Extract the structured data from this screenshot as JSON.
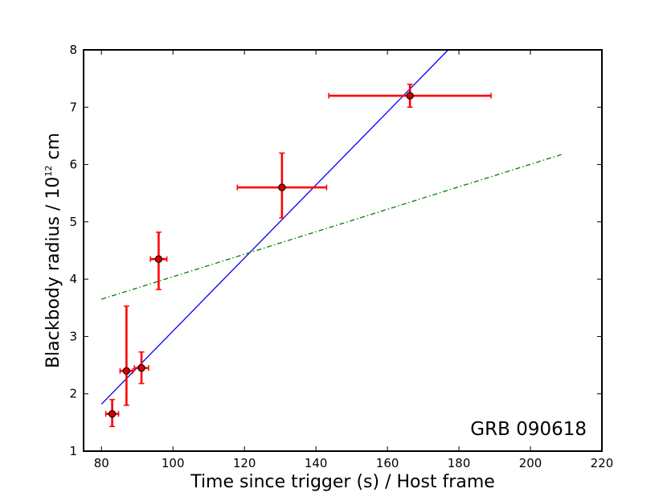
{
  "chart_data": {
    "type": "scatter",
    "title": "",
    "xlabel": "Time since trigger (s) / Host frame",
    "ylabel_main": "Blackbody radius / 10",
    "ylabel_exp": "12",
    "ylabel_unit": " cm",
    "annotation": "GRB 090618",
    "xlim": [
      75,
      220
    ],
    "ylim": [
      1,
      8
    ],
    "xticks": [
      80,
      100,
      120,
      140,
      160,
      180,
      200,
      220
    ],
    "yticks": [
      1,
      2,
      3,
      4,
      5,
      6,
      7,
      8
    ],
    "grid": false,
    "points": [
      {
        "x": 83,
        "y": 1.65,
        "xerr": 1.8,
        "yerr_lo": 0.22,
        "yerr_hi": 0.25
      },
      {
        "x": 87,
        "y": 2.4,
        "xerr": 1.8,
        "yerr_lo": 0.6,
        "yerr_hi": 1.13
      },
      {
        "x": 91.2,
        "y": 2.45,
        "xerr": 2.0,
        "yerr_lo": 0.27,
        "yerr_hi": 0.28
      },
      {
        "x": 96,
        "y": 4.35,
        "xerr": 2.3,
        "yerr_lo": 0.53,
        "yerr_hi": 0.47
      },
      {
        "x": 130.5,
        "y": 5.6,
        "xerr": 12.5,
        "yerr_lo": 0.53,
        "yerr_hi": 0.6
      },
      {
        "x": 166.3,
        "y": 7.2,
        "xerr": 22.7,
        "yerr_lo": 0.2,
        "yerr_hi": 0.2
      }
    ],
    "lines": [
      {
        "style": "solid",
        "color": "#0000ff",
        "x": [
          80,
          177
        ],
        "y": [
          1.82,
          8.0
        ]
      },
      {
        "style": "dash-dot",
        "color": "#008000",
        "x": [
          80,
          209
        ],
        "y": [
          3.65,
          6.18
        ]
      }
    ],
    "point_color": "#ff0000",
    "marker_face": "#cc0000"
  }
}
